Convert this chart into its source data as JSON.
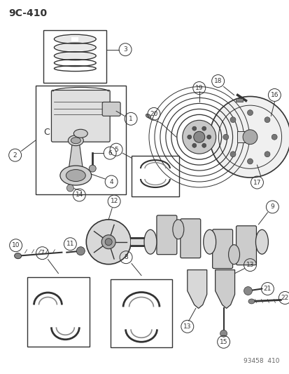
{
  "page_code": "9C-410",
  "watermark": "93458  410",
  "bg_color": "#ffffff",
  "lc": "#333333",
  "gray1": "#cccccc",
  "gray2": "#aaaaaa",
  "gray3": "#888888"
}
